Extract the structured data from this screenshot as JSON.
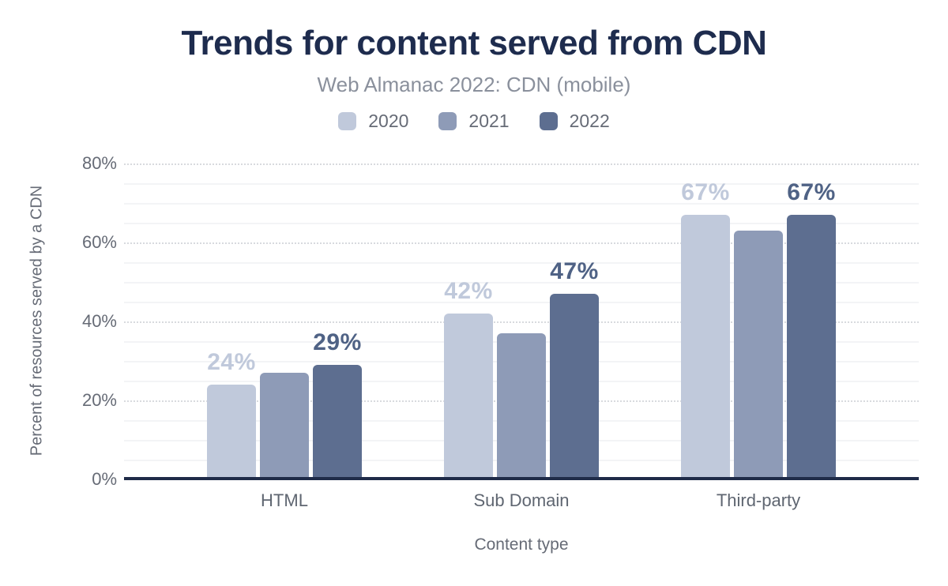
{
  "chart_data": {
    "type": "bar",
    "title": "Trends for content served from CDN",
    "subtitle": "Web Almanac 2022: CDN (mobile)",
    "xlabel": "Content type",
    "ylabel": "Percent of resources served by a CDN",
    "categories": [
      "HTML",
      "Sub Domain",
      "Third-party"
    ],
    "series": [
      {
        "name": "2020",
        "color": "#c0c9db",
        "label_color": "#c0c9db",
        "show_labels": true,
        "values": [
          24,
          42,
          67
        ],
        "labels": [
          "24%",
          "42%",
          "67%"
        ]
      },
      {
        "name": "2021",
        "color": "#8e9bb7",
        "label_color": "#8e9bb7",
        "show_labels": false,
        "values": [
          27,
          37,
          63
        ],
        "labels": [
          "27%",
          "37%",
          "63%"
        ]
      },
      {
        "name": "2022",
        "color": "#5d6e90",
        "label_color": "#4f6285",
        "show_labels": true,
        "values": [
          29,
          47,
          67
        ],
        "labels": [
          "29%",
          "47%",
          "67%"
        ]
      }
    ],
    "ylim": [
      0,
      80
    ],
    "yticks": [
      0,
      20,
      40,
      60,
      80
    ],
    "ytick_suffix": "%",
    "legend_position": "top",
    "grid": {
      "major_step": 20,
      "minor_step": 5,
      "major_style": "dotted",
      "minor_style": "solid"
    }
  },
  "colors": {
    "title_text": "#1e2c4e",
    "subtitle_text": "#8a909c",
    "axis_text": "#666b76",
    "axis_line": "#1f2b48",
    "grid_major": "#d8dade",
    "grid_minor": "#f3f4f6"
  }
}
